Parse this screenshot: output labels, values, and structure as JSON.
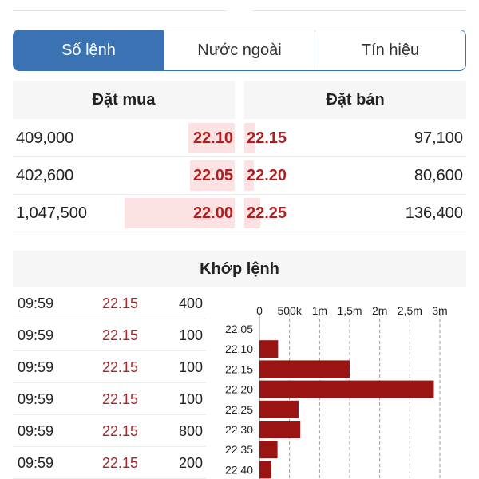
{
  "tabs": [
    {
      "label": "Sổ lệnh",
      "active": true
    },
    {
      "label": "Nước ngoài",
      "active": false
    },
    {
      "label": "Tín hiệu",
      "active": false
    }
  ],
  "orderbook": {
    "buy_header": "Đặt mua",
    "sell_header": "Đặt bán",
    "rows": [
      {
        "buy_volume": "409,000",
        "buy_price": "22.10",
        "sell_price": "22.15",
        "sell_volume": "97,100"
      },
      {
        "buy_volume": "402,600",
        "buy_price": "22.05",
        "sell_price": "22.20",
        "sell_volume": "80,600"
      },
      {
        "buy_volume": "1,047,500",
        "buy_price": "22.00",
        "sell_price": "22.25",
        "sell_volume": "136,400"
      }
    ]
  },
  "matching": {
    "header": "Khớp lệnh",
    "trades": [
      {
        "time": "09:59",
        "price": "22.15",
        "volume": "400"
      },
      {
        "time": "09:59",
        "price": "22.15",
        "volume": "100"
      },
      {
        "time": "09:59",
        "price": "22.15",
        "volume": "100"
      },
      {
        "time": "09:59",
        "price": "22.15",
        "volume": "100"
      },
      {
        "time": "09:59",
        "price": "22.15",
        "volume": "800"
      },
      {
        "time": "09:59",
        "price": "22.15",
        "volume": "200"
      }
    ]
  },
  "colors": {
    "accent": "#3a72b4",
    "price_red": "#b01e1e",
    "bar_fill": "#fde2e4",
    "chart_bar": "#9b1414"
  },
  "chart_data": {
    "type": "bar",
    "orientation": "horizontal",
    "categories": [
      "22.05",
      "22.10",
      "22.15",
      "22.20",
      "22.25",
      "22.30",
      "22.35",
      "22.40"
    ],
    "values": [
      0,
      310000,
      1500000,
      2900000,
      650000,
      680000,
      300000,
      200000
    ],
    "xlim": [
      0,
      3000000
    ],
    "xticks": [
      {
        "value": 0,
        "label": "0"
      },
      {
        "value": 500000,
        "label": "500k"
      },
      {
        "value": 1000000,
        "label": "1m"
      },
      {
        "value": 1500000,
        "label": "1,5m"
      },
      {
        "value": 2000000,
        "label": "2m"
      },
      {
        "value": 2500000,
        "label": "2,5m"
      },
      {
        "value": 3000000,
        "label": "3m"
      }
    ],
    "grid": true
  }
}
